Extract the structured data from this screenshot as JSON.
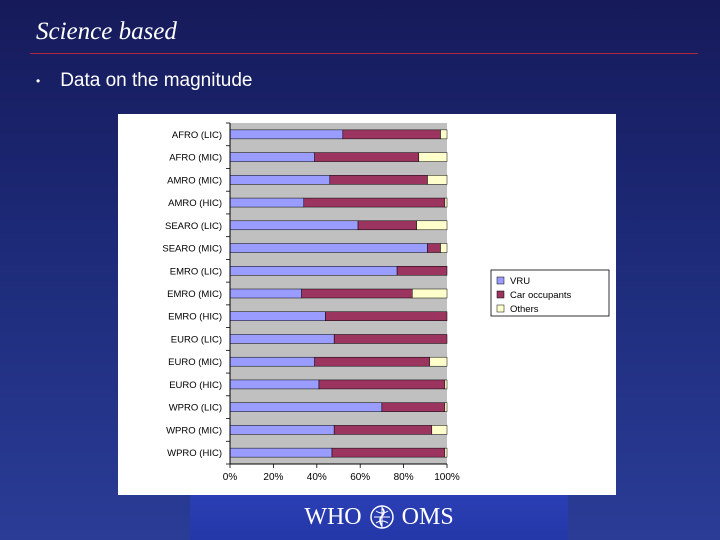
{
  "slide": {
    "title": "Science based",
    "bullet": "Data on the magnitude"
  },
  "footer": {
    "logo_left": "WHO",
    "logo_right": "OMS"
  },
  "colors": {
    "vru": "#9a9dff",
    "car": "#9c3460",
    "others": "#ffffcc",
    "plot_bg": "#c0c0c0"
  },
  "chart_data": {
    "type": "bar",
    "orientation": "horizontal",
    "stacked": "percent",
    "categories": [
      "AFRO (LIC)",
      "AFRO (MIC)",
      "AMRO (MIC)",
      "AMRO (HIC)",
      "SEARO (LIC)",
      "SEARO (MIC)",
      "EMRO (LIC)",
      "EMRO (MIC)",
      "EMRO (HIC)",
      "EURO (LIC)",
      "EURO (MIC)",
      "EURO (HIC)",
      "WPRO (LIC)",
      "WPRO (MIC)",
      "WPRO (HIC)"
    ],
    "series": [
      {
        "name": "VRU",
        "values": [
          52,
          39,
          46,
          34,
          59,
          91,
          77,
          33,
          44,
          48,
          39,
          41,
          70,
          48,
          47
        ]
      },
      {
        "name": "Car occupants",
        "values": [
          45,
          48,
          45,
          65,
          27,
          6,
          23,
          51,
          56,
          52,
          53,
          58,
          29,
          45,
          52
        ]
      },
      {
        "name": "Others",
        "values": [
          3,
          13,
          9,
          1,
          14,
          3,
          0,
          16,
          0,
          0,
          8,
          1,
          1,
          7,
          1
        ]
      }
    ],
    "xlim": [
      0,
      100
    ],
    "xticks": [
      "0%",
      "20%",
      "40%",
      "60%",
      "80%",
      "100%"
    ],
    "legend": {
      "position": "right",
      "entries": [
        "VRU",
        "Car occupants",
        "Others"
      ]
    },
    "grid": true
  }
}
